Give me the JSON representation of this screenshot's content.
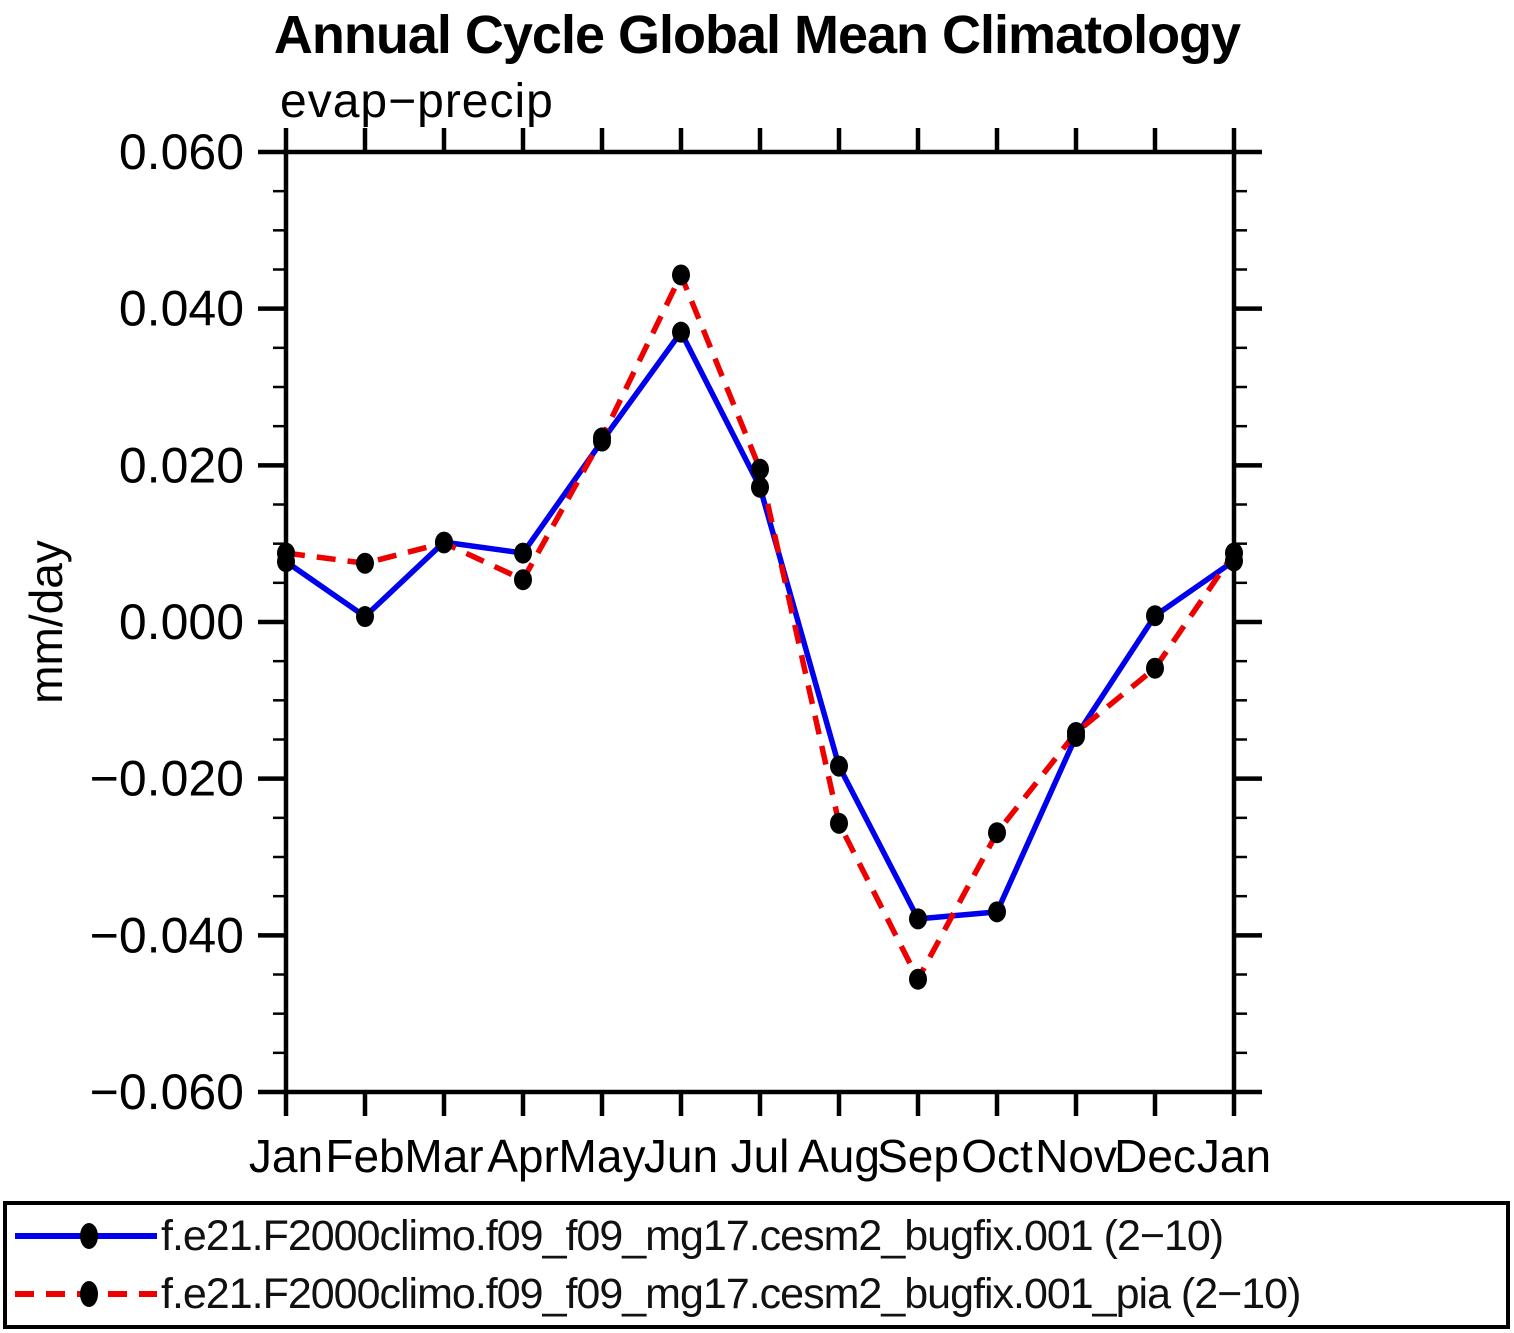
{
  "page": {
    "title": "Annual Cycle Global Mean Climatology"
  },
  "chart_data": {
    "type": "line",
    "title": "Annual Cycle Global Mean Climatology",
    "subtitle": "evap−precip",
    "ylabel": "mm/day",
    "x_categories": [
      "Jan",
      "Feb",
      "Mar",
      "Apr",
      "May",
      "Jun",
      "Jul",
      "Aug",
      "Sep",
      "Oct",
      "Nov",
      "Dec",
      "Jan"
    ],
    "ylim": [
      -0.06,
      0.06
    ],
    "ytick_step": 0.02,
    "yminor_step": 0.005,
    "ytick_labels": [
      "0.060",
      "0.040",
      "0.020",
      "0.000",
      "−0.020",
      "−0.040",
      "−0.060"
    ],
    "grid": false,
    "legend_position": "bottom",
    "marker": "filled-circle",
    "marker_color": "#000000",
    "axis_color": "#000000",
    "series": [
      {
        "name": "f.e21.F2000climo.f09_f09_mg17.cesm2_bugfix.001 (2−10)",
        "color": "#0000ee",
        "line_style": "solid",
        "values": [
          0.0077,
          0.0007,
          0.0102,
          0.0088,
          0.0231,
          0.037,
          0.0172,
          -0.0184,
          -0.0379,
          -0.037,
          -0.0146,
          0.0008,
          0.0078
        ]
      },
      {
        "name": "f.e21.F2000climo.f09_f09_mg17.cesm2_bugfix.001_pia (2−10)",
        "color": "#ee0000",
        "line_style": "dashed",
        "dash": "19 12",
        "values": [
          0.0088,
          0.0075,
          0.0101,
          0.0054,
          0.0235,
          0.0443,
          0.0195,
          -0.0257,
          -0.0456,
          -0.0269,
          -0.0141,
          -0.0059,
          0.0088
        ]
      }
    ]
  }
}
